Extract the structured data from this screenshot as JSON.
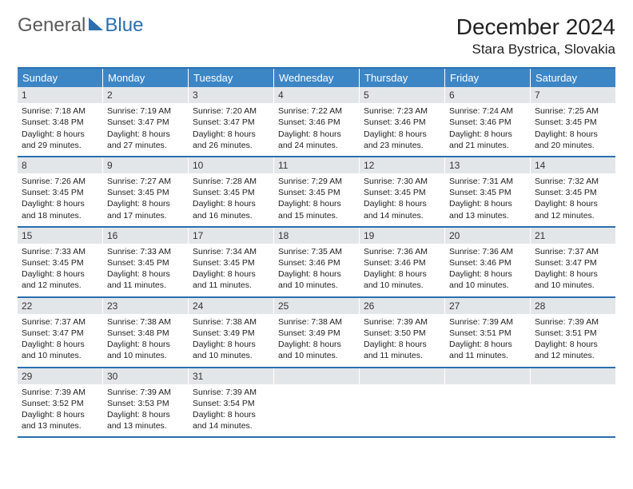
{
  "brand": {
    "word1": "General",
    "word2": "Blue"
  },
  "title": "December 2024",
  "location": "Stara Bystrica, Slovakia",
  "colors": {
    "header_bar": "#3d86c6",
    "rule": "#2b6fb0",
    "daynum_bg": "#e3e6e8",
    "text": "#222222",
    "logo_gray": "#5a5a5a",
    "logo_blue": "#2b6fb0"
  },
  "dow": [
    "Sunday",
    "Monday",
    "Tuesday",
    "Wednesday",
    "Thursday",
    "Friday",
    "Saturday"
  ],
  "weeks": [
    [
      {
        "n": "1",
        "sr": "Sunrise: 7:18 AM",
        "ss": "Sunset: 3:48 PM",
        "d1": "Daylight: 8 hours",
        "d2": "and 29 minutes."
      },
      {
        "n": "2",
        "sr": "Sunrise: 7:19 AM",
        "ss": "Sunset: 3:47 PM",
        "d1": "Daylight: 8 hours",
        "d2": "and 27 minutes."
      },
      {
        "n": "3",
        "sr": "Sunrise: 7:20 AM",
        "ss": "Sunset: 3:47 PM",
        "d1": "Daylight: 8 hours",
        "d2": "and 26 minutes."
      },
      {
        "n": "4",
        "sr": "Sunrise: 7:22 AM",
        "ss": "Sunset: 3:46 PM",
        "d1": "Daylight: 8 hours",
        "d2": "and 24 minutes."
      },
      {
        "n": "5",
        "sr": "Sunrise: 7:23 AM",
        "ss": "Sunset: 3:46 PM",
        "d1": "Daylight: 8 hours",
        "d2": "and 23 minutes."
      },
      {
        "n": "6",
        "sr": "Sunrise: 7:24 AM",
        "ss": "Sunset: 3:46 PM",
        "d1": "Daylight: 8 hours",
        "d2": "and 21 minutes."
      },
      {
        "n": "7",
        "sr": "Sunrise: 7:25 AM",
        "ss": "Sunset: 3:45 PM",
        "d1": "Daylight: 8 hours",
        "d2": "and 20 minutes."
      }
    ],
    [
      {
        "n": "8",
        "sr": "Sunrise: 7:26 AM",
        "ss": "Sunset: 3:45 PM",
        "d1": "Daylight: 8 hours",
        "d2": "and 18 minutes."
      },
      {
        "n": "9",
        "sr": "Sunrise: 7:27 AM",
        "ss": "Sunset: 3:45 PM",
        "d1": "Daylight: 8 hours",
        "d2": "and 17 minutes."
      },
      {
        "n": "10",
        "sr": "Sunrise: 7:28 AM",
        "ss": "Sunset: 3:45 PM",
        "d1": "Daylight: 8 hours",
        "d2": "and 16 minutes."
      },
      {
        "n": "11",
        "sr": "Sunrise: 7:29 AM",
        "ss": "Sunset: 3:45 PM",
        "d1": "Daylight: 8 hours",
        "d2": "and 15 minutes."
      },
      {
        "n": "12",
        "sr": "Sunrise: 7:30 AM",
        "ss": "Sunset: 3:45 PM",
        "d1": "Daylight: 8 hours",
        "d2": "and 14 minutes."
      },
      {
        "n": "13",
        "sr": "Sunrise: 7:31 AM",
        "ss": "Sunset: 3:45 PM",
        "d1": "Daylight: 8 hours",
        "d2": "and 13 minutes."
      },
      {
        "n": "14",
        "sr": "Sunrise: 7:32 AM",
        "ss": "Sunset: 3:45 PM",
        "d1": "Daylight: 8 hours",
        "d2": "and 12 minutes."
      }
    ],
    [
      {
        "n": "15",
        "sr": "Sunrise: 7:33 AM",
        "ss": "Sunset: 3:45 PM",
        "d1": "Daylight: 8 hours",
        "d2": "and 12 minutes."
      },
      {
        "n": "16",
        "sr": "Sunrise: 7:33 AM",
        "ss": "Sunset: 3:45 PM",
        "d1": "Daylight: 8 hours",
        "d2": "and 11 minutes."
      },
      {
        "n": "17",
        "sr": "Sunrise: 7:34 AM",
        "ss": "Sunset: 3:45 PM",
        "d1": "Daylight: 8 hours",
        "d2": "and 11 minutes."
      },
      {
        "n": "18",
        "sr": "Sunrise: 7:35 AM",
        "ss": "Sunset: 3:46 PM",
        "d1": "Daylight: 8 hours",
        "d2": "and 10 minutes."
      },
      {
        "n": "19",
        "sr": "Sunrise: 7:36 AM",
        "ss": "Sunset: 3:46 PM",
        "d1": "Daylight: 8 hours",
        "d2": "and 10 minutes."
      },
      {
        "n": "20",
        "sr": "Sunrise: 7:36 AM",
        "ss": "Sunset: 3:46 PM",
        "d1": "Daylight: 8 hours",
        "d2": "and 10 minutes."
      },
      {
        "n": "21",
        "sr": "Sunrise: 7:37 AM",
        "ss": "Sunset: 3:47 PM",
        "d1": "Daylight: 8 hours",
        "d2": "and 10 minutes."
      }
    ],
    [
      {
        "n": "22",
        "sr": "Sunrise: 7:37 AM",
        "ss": "Sunset: 3:47 PM",
        "d1": "Daylight: 8 hours",
        "d2": "and 10 minutes."
      },
      {
        "n": "23",
        "sr": "Sunrise: 7:38 AM",
        "ss": "Sunset: 3:48 PM",
        "d1": "Daylight: 8 hours",
        "d2": "and 10 minutes."
      },
      {
        "n": "24",
        "sr": "Sunrise: 7:38 AM",
        "ss": "Sunset: 3:49 PM",
        "d1": "Daylight: 8 hours",
        "d2": "and 10 minutes."
      },
      {
        "n": "25",
        "sr": "Sunrise: 7:38 AM",
        "ss": "Sunset: 3:49 PM",
        "d1": "Daylight: 8 hours",
        "d2": "and 10 minutes."
      },
      {
        "n": "26",
        "sr": "Sunrise: 7:39 AM",
        "ss": "Sunset: 3:50 PM",
        "d1": "Daylight: 8 hours",
        "d2": "and 11 minutes."
      },
      {
        "n": "27",
        "sr": "Sunrise: 7:39 AM",
        "ss": "Sunset: 3:51 PM",
        "d1": "Daylight: 8 hours",
        "d2": "and 11 minutes."
      },
      {
        "n": "28",
        "sr": "Sunrise: 7:39 AM",
        "ss": "Sunset: 3:51 PM",
        "d1": "Daylight: 8 hours",
        "d2": "and 12 minutes."
      }
    ],
    [
      {
        "n": "29",
        "sr": "Sunrise: 7:39 AM",
        "ss": "Sunset: 3:52 PM",
        "d1": "Daylight: 8 hours",
        "d2": "and 13 minutes."
      },
      {
        "n": "30",
        "sr": "Sunrise: 7:39 AM",
        "ss": "Sunset: 3:53 PM",
        "d1": "Daylight: 8 hours",
        "d2": "and 13 minutes."
      },
      {
        "n": "31",
        "sr": "Sunrise: 7:39 AM",
        "ss": "Sunset: 3:54 PM",
        "d1": "Daylight: 8 hours",
        "d2": "and 14 minutes."
      },
      null,
      null,
      null,
      null
    ]
  ]
}
